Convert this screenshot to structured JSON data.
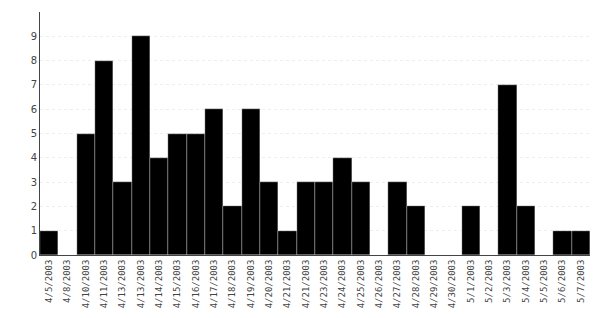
{
  "chart_data": {
    "type": "bar",
    "categories": [
      "4/5/2003",
      "4/8/2003",
      "4/10/2003",
      "4/11/2003",
      "4/13/2003",
      "4/13/2003",
      "4/14/2003",
      "4/15/2003",
      "4/16/2003",
      "4/17/2003",
      "4/18/2003",
      "4/19/2003",
      "4/20/2003",
      "4/21/2003",
      "4/21/2003",
      "4/23/2003",
      "4/24/2003",
      "4/25/2003",
      "4/26/2003",
      "4/27/2003",
      "4/28/2003",
      "4/29/2003",
      "4/30/2003",
      "5/1/2003",
      "5/2/2003",
      "5/3/2003",
      "5/4/2003",
      "5/5/2003",
      "5/6/2003",
      "5/7/2003"
    ],
    "values": [
      1,
      0,
      5,
      8,
      3,
      9,
      4,
      5,
      5,
      6,
      2,
      6,
      3,
      1,
      3,
      3,
      4,
      3,
      0,
      3,
      2,
      0,
      0,
      2,
      0,
      7,
      2,
      0,
      1,
      1
    ],
    "color": "#000000",
    "ylim": [
      0,
      10
    ],
    "yticks": [
      0,
      1,
      2,
      3,
      4,
      5,
      6,
      7,
      8,
      9
    ],
    "grid": true
  }
}
